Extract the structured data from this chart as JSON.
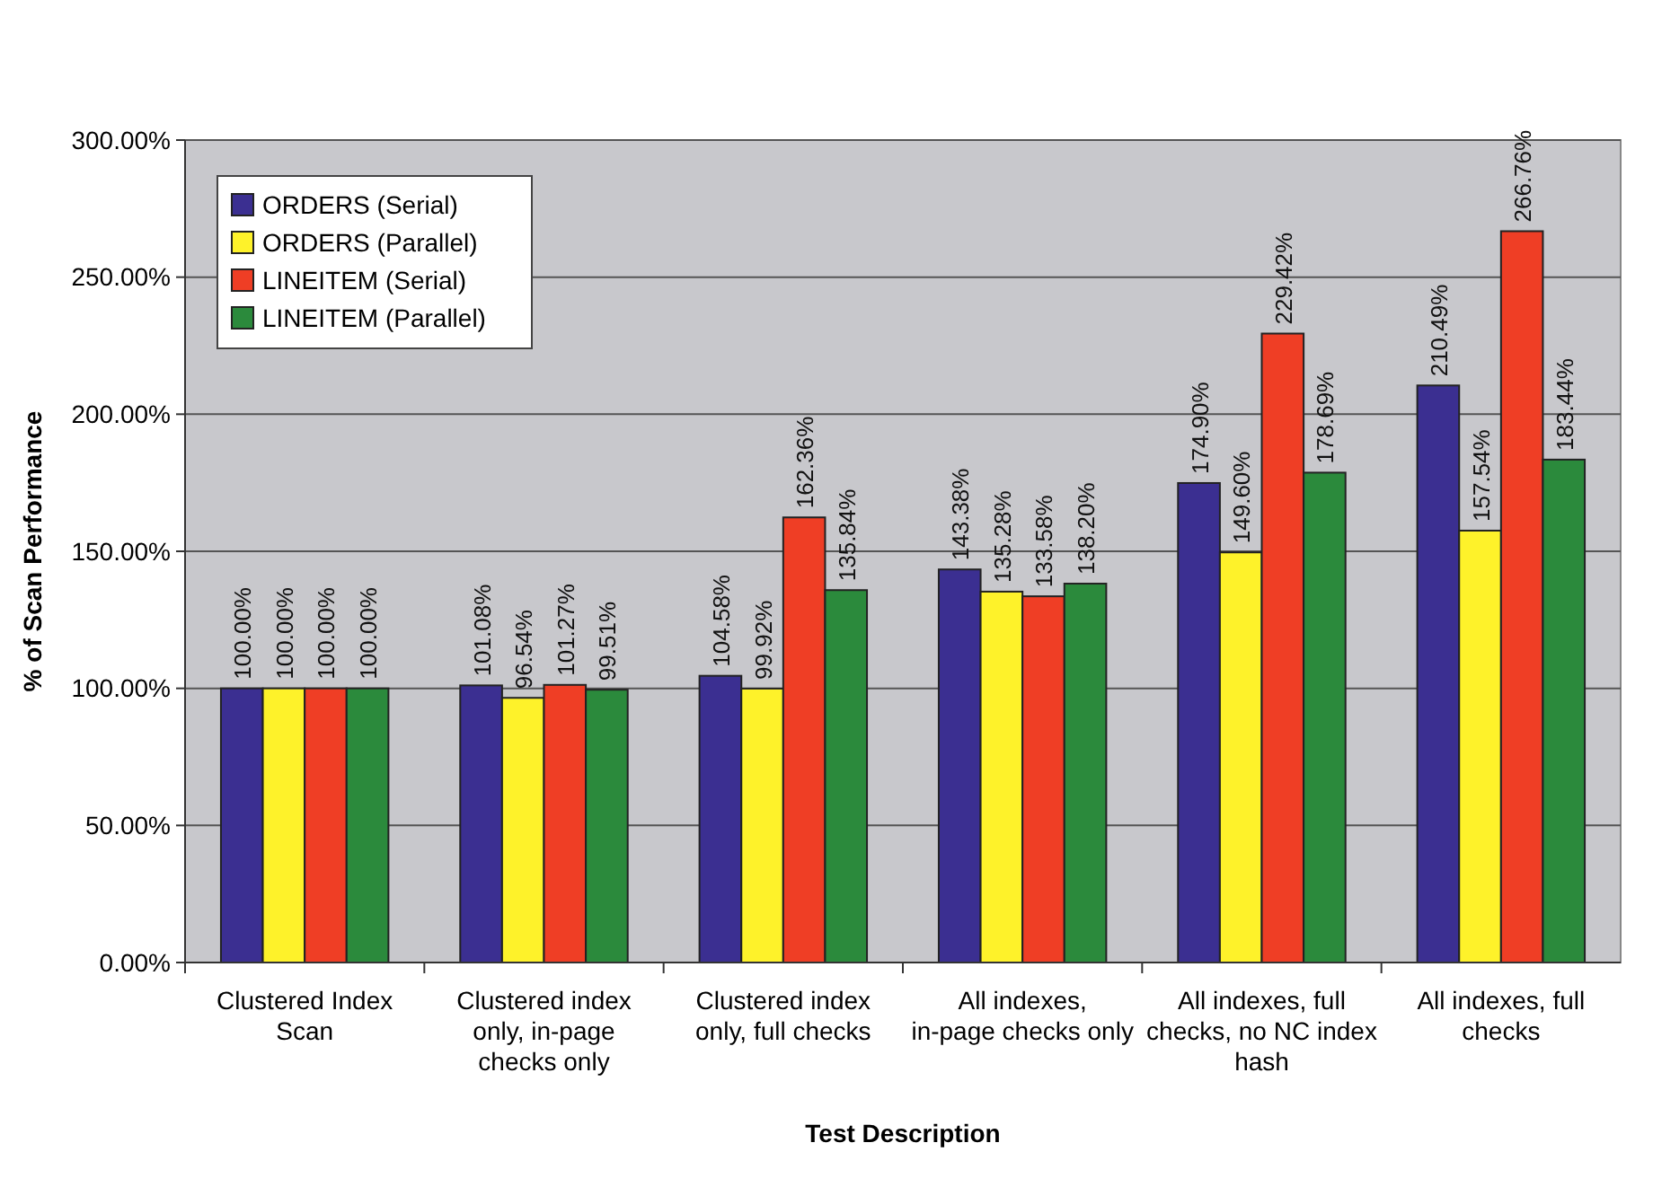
{
  "chart_data": {
    "type": "bar",
    "xlabel": "Test Description",
    "ylabel": "% of Scan Performance",
    "categories": [
      "Clustered Index Scan",
      "Clustered index only, in-page checks only",
      "Clustered index only, full checks",
      "All indexes, in-page checks only",
      "All indexes, full checks, no NC index hash",
      "All indexes, full checks"
    ],
    "series": [
      {
        "name": "ORDERS (Serial)",
        "color": "#3b2f91",
        "values": [
          100.0,
          101.08,
          104.58,
          143.38,
          174.9,
          210.49
        ],
        "value_labels": [
          "100.00%",
          "101.08%",
          "104.58%",
          "143.38%",
          "174.90%",
          "210.49%"
        ]
      },
      {
        "name": "ORDERS (Parallel)",
        "color": "#fef22a",
        "values": [
          100.0,
          96.54,
          99.92,
          135.28,
          149.6,
          157.54
        ],
        "value_labels": [
          "100.00%",
          "96.54%",
          "99.92%",
          "135.28%",
          "149.60%",
          "157.54%"
        ]
      },
      {
        "name": "LINEITEM (Serial)",
        "color": "#ef3e25",
        "values": [
          100.0,
          101.27,
          162.36,
          133.58,
          229.42,
          266.76
        ],
        "value_labels": [
          "100.00%",
          "101.27%",
          "162.36%",
          "133.58%",
          "229.42%",
          "266.76%"
        ]
      },
      {
        "name": "LINEITEM (Parallel)",
        "color": "#2b8a3c",
        "values": [
          100.0,
          99.51,
          135.84,
          138.2,
          178.69,
          183.44
        ],
        "value_labels": [
          "100.00%",
          "99.51%",
          "135.84%",
          "138.20%",
          "178.69%",
          "183.44%"
        ]
      }
    ],
    "ylim": [
      0,
      300
    ],
    "yticks": [
      {
        "value": 0,
        "label": "0.00%"
      },
      {
        "value": 50,
        "label": "50.00%"
      },
      {
        "value": 100,
        "label": "100.00%"
      },
      {
        "value": 150,
        "label": "150.00%"
      },
      {
        "value": 200,
        "label": "200.00%"
      },
      {
        "value": 250,
        "label": "250.00%"
      },
      {
        "value": 300,
        "label": "300.00%"
      }
    ],
    "grid": "y",
    "legend": "top left"
  }
}
